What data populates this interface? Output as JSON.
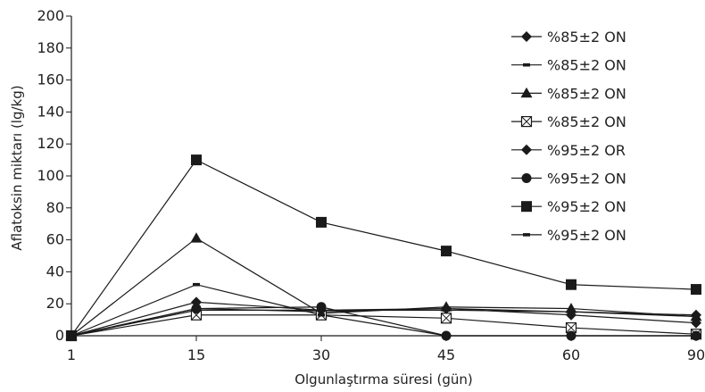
{
  "chart_data": {
    "type": "line",
    "title": "",
    "xlabel": "Olgunlaştırma süresi (gün)",
    "ylabel": "Aflatoksin miktarı (lg/kg)",
    "x": [
      1,
      15,
      30,
      45,
      60,
      90
    ],
    "x_tick_labels": [
      "1",
      "15",
      "30",
      "45",
      "60",
      "90"
    ],
    "ylim": [
      0,
      200
    ],
    "y_ticks": [
      0,
      20,
      40,
      60,
      80,
      100,
      120,
      140,
      160,
      180,
      200
    ],
    "y_tick_labels": [
      "0",
      "20",
      "40",
      "60",
      "80",
      "100",
      "120",
      "140",
      "160",
      "180",
      "200"
    ],
    "grid": false,
    "legend_position": "right",
    "series_color": "#1a1a1a",
    "series": [
      {
        "name": "%85±2 ON",
        "marker": "diamond",
        "values": [
          0,
          17,
          15,
          17,
          15,
          13
        ]
      },
      {
        "name": "%85±2 ON",
        "marker": "dash",
        "values": [
          0,
          16,
          16,
          16,
          15,
          12
        ]
      },
      {
        "name": "%85±2 ON",
        "marker": "triangle",
        "values": [
          0,
          61,
          14,
          18,
          17,
          12
        ]
      },
      {
        "name": "%85±2 ON",
        "marker": "boxed-x",
        "values": [
          0,
          13,
          13,
          11,
          5,
          1
        ]
      },
      {
        "name": "%95±2 OR",
        "marker": "diamond",
        "values": [
          0,
          21,
          16,
          17,
          13,
          8
        ]
      },
      {
        "name": "%95±2 ON",
        "marker": "circle",
        "values": [
          0,
          17,
          18,
          0,
          0,
          0
        ]
      },
      {
        "name": "%95±2 ON",
        "marker": "square",
        "values": [
          0,
          110,
          71,
          53,
          32,
          29
        ]
      },
      {
        "name": "%95±2 ON",
        "marker": "dash",
        "values": [
          0,
          32,
          13,
          0,
          0,
          0
        ]
      }
    ]
  }
}
